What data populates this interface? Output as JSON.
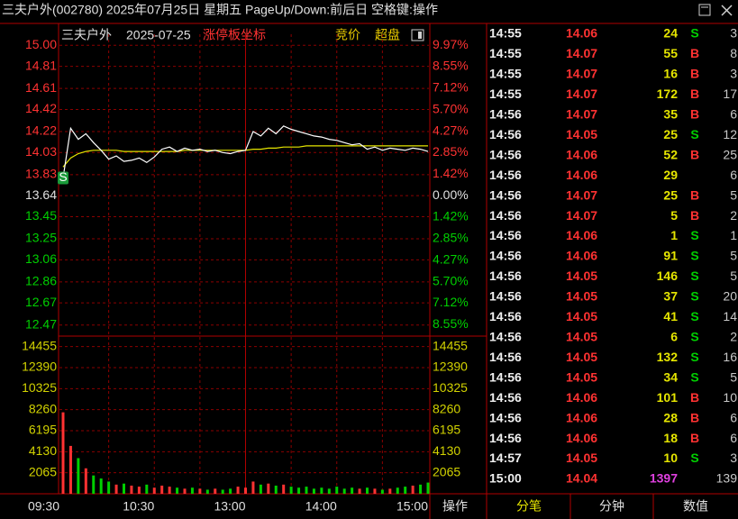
{
  "title_bar": "三夫户外(002780) 2025年07月25日 星期五 PageUp/Down:前后日 空格键:操作",
  "chart_data": {
    "type": "line",
    "title": "三夫户外",
    "subtitle": "2025-07-25",
    "annotations": [
      "涨停板坐标",
      "竞价",
      "超盘"
    ],
    "signal_label": "S",
    "x": [
      "09:30",
      "09:35",
      "09:40",
      "09:45",
      "09:50",
      "09:55",
      "10:00",
      "10:05",
      "10:10",
      "10:15",
      "10:20",
      "10:25",
      "10:30",
      "10:35",
      "10:40",
      "10:45",
      "10:50",
      "10:55",
      "11:00",
      "11:05",
      "11:10",
      "11:15",
      "11:20",
      "11:25",
      "13:00",
      "13:05",
      "13:10",
      "13:15",
      "13:20",
      "13:25",
      "13:30",
      "13:35",
      "13:40",
      "13:45",
      "13:50",
      "13:55",
      "14:00",
      "14:05",
      "14:10",
      "14:15",
      "14:20",
      "14:25",
      "14:30",
      "14:35",
      "14:40",
      "14:45",
      "14:50",
      "14:55",
      "15:00"
    ],
    "series": [
      {
        "color": "#ffffff",
        "values": [
          13.8,
          14.25,
          14.15,
          14.2,
          14.12,
          14.05,
          13.97,
          14.0,
          13.95,
          13.96,
          13.98,
          13.94,
          13.99,
          14.06,
          14.08,
          14.04,
          14.07,
          14.05,
          14.06,
          14.04,
          14.05,
          14.03,
          14.02,
          14.04,
          14.05,
          14.22,
          14.18,
          14.25,
          14.2,
          14.27,
          14.24,
          14.22,
          14.2,
          14.18,
          14.17,
          14.15,
          14.14,
          14.12,
          14.1,
          14.11,
          14.06,
          14.08,
          14.05,
          14.07,
          14.06,
          14.05,
          14.07,
          14.06,
          14.04
        ]
      },
      {
        "color": "#e6e600",
        "values": [
          13.9,
          13.98,
          14.02,
          14.04,
          14.05,
          14.05,
          14.05,
          14.05,
          14.04,
          14.04,
          14.04,
          14.04,
          14.04,
          14.04,
          14.04,
          14.04,
          14.05,
          14.05,
          14.05,
          14.05,
          14.05,
          14.05,
          14.05,
          14.05,
          14.05,
          14.06,
          14.06,
          14.07,
          14.07,
          14.08,
          14.08,
          14.08,
          14.09,
          14.09,
          14.09,
          14.09,
          14.09,
          14.09,
          14.09,
          14.09,
          14.09,
          14.09,
          14.09,
          14.09,
          14.09,
          14.09,
          14.09,
          14.09,
          14.09
        ]
      }
    ],
    "ylim": [
      12.37,
      15.1
    ],
    "yticks": [
      {
        "value": 15,
        "label": "15.00"
      },
      14.81,
      14.61,
      14.42,
      14.22,
      14.03,
      13.83,
      13.64,
      13.45,
      13.25,
      13.06,
      12.86,
      12.67,
      12.47
    ],
    "y2lim": [
      -9.31,
      10.7
    ],
    "y2ticks": [
      {
        "value": 9.97,
        "label": "9.97%"
      },
      {
        "value": 8.55,
        "label": "8.55%"
      },
      {
        "value": 7.12,
        "label": "7.12%"
      },
      {
        "value": 5.7,
        "label": "5.70%"
      },
      {
        "value": 4.27,
        "label": "4.27%"
      },
      {
        "value": 2.85,
        "label": "2.85%"
      },
      {
        "value": 1.42,
        "label": "1.42%"
      },
      {
        "value": 0,
        "label": "0.00%"
      },
      {
        "value": -1.42,
        "label": "1.42%"
      },
      {
        "value": -2.85,
        "label": "2.85%"
      },
      {
        "value": -4.27,
        "label": "4.27%"
      },
      {
        "value": -5.7,
        "label": "5.70%"
      },
      {
        "value": -7.12,
        "label": "7.12%"
      },
      {
        "value": -8.55,
        "label": "8.55%"
      }
    ],
    "volume": {
      "values": [
        8000,
        4700,
        3500,
        2500,
        1800,
        1500,
        1200,
        900,
        1000,
        800,
        700,
        900,
        600,
        800,
        700,
        600,
        500,
        600,
        500,
        400,
        500,
        400,
        500,
        700,
        600,
        1200,
        900,
        1000,
        800,
        900,
        700,
        600,
        700,
        500,
        600,
        500,
        700,
        500,
        600,
        500,
        600,
        500,
        400,
        500,
        600,
        700,
        800,
        900,
        1100
      ],
      "ylim": [
        0,
        15400
      ],
      "yticks": [
        14455,
        12390,
        10325,
        8260,
        6195,
        4130,
        2065
      ],
      "up_color": "#ff3232",
      "down_color": "#00d000"
    },
    "xticks": [
      "09:30",
      "10:30",
      "13:00",
      "14:00",
      "15:00"
    ],
    "grid": true
  },
  "trades": {
    "rows": [
      {
        "time": "14:55",
        "price": "14.06",
        "volume": 24,
        "side": "S",
        "count": 3
      },
      {
        "time": "14:55",
        "price": "14.07",
        "volume": 55,
        "side": "B",
        "count": 8
      },
      {
        "time": "14:55",
        "price": "14.07",
        "volume": 16,
        "side": "B",
        "count": 3
      },
      {
        "time": "14:55",
        "price": "14.07",
        "volume": 172,
        "side": "B",
        "count": 17
      },
      {
        "time": "14:56",
        "price": "14.07",
        "volume": 35,
        "side": "B",
        "count": 6
      },
      {
        "time": "14:56",
        "price": "14.05",
        "volume": 25,
        "side": "S",
        "count": 12
      },
      {
        "time": "14:56",
        "price": "14.06",
        "volume": 52,
        "side": "B",
        "count": 25
      },
      {
        "time": "14:56",
        "price": "14.06",
        "volume": 29,
        "side": null,
        "count": 6
      },
      {
        "time": "14:56",
        "price": "14.07",
        "volume": 25,
        "side": "B",
        "count": 5
      },
      {
        "time": "14:56",
        "price": "14.07",
        "volume": 5,
        "side": "B",
        "count": 2
      },
      {
        "time": "14:56",
        "price": "14.06",
        "volume": 1,
        "side": "S",
        "count": 1
      },
      {
        "time": "14:56",
        "price": "14.06",
        "volume": 91,
        "side": "S",
        "count": 5
      },
      {
        "time": "14:56",
        "price": "14.05",
        "volume": 146,
        "side": "S",
        "count": 5
      },
      {
        "time": "14:56",
        "price": "14.05",
        "volume": 37,
        "side": "S",
        "count": 20
      },
      {
        "time": "14:56",
        "price": "14.05",
        "volume": 41,
        "side": "S",
        "count": 14
      },
      {
        "time": "14:56",
        "price": "14.05",
        "volume": 6,
        "side": "S",
        "count": 2
      },
      {
        "time": "14:56",
        "price": "14.05",
        "volume": 132,
        "side": "S",
        "count": 16
      },
      {
        "time": "14:56",
        "price": "14.05",
        "volume": 34,
        "side": "S",
        "count": 5
      },
      {
        "time": "14:56",
        "price": "14.06",
        "volume": 101,
        "side": "B",
        "count": 10
      },
      {
        "time": "14:56",
        "price": "14.06",
        "volume": 28,
        "side": "B",
        "count": 6
      },
      {
        "time": "14:56",
        "price": "14.06",
        "volume": 18,
        "side": "B",
        "count": 6
      },
      {
        "time": "14:57",
        "price": "14.05",
        "volume": 10,
        "side": "S",
        "count": 3
      },
      {
        "time": "15:00",
        "price": "14.04",
        "volume": 1397,
        "side": null,
        "count": 139,
        "volume_color": "#e040e0"
      }
    ]
  },
  "tabs": [
    "操作",
    "分笔",
    "分钟",
    "数值"
  ]
}
